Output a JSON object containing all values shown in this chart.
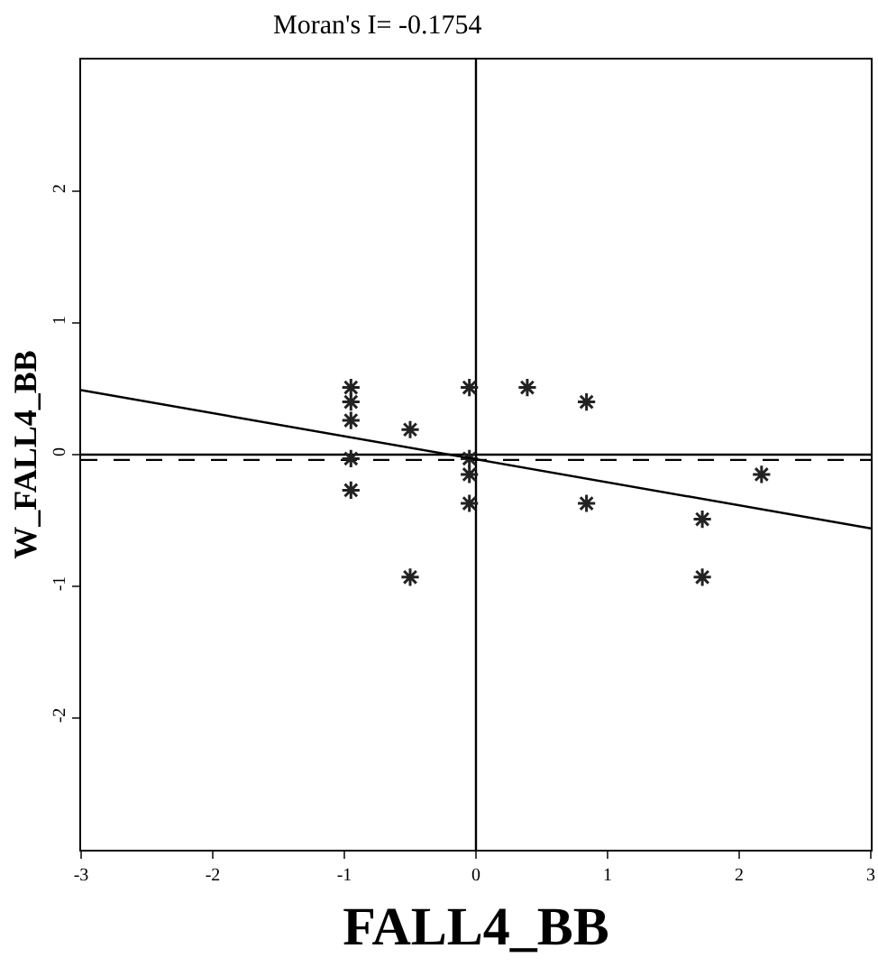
{
  "chart_data": {
    "type": "scatter",
    "title": "Moran's I= -0.1754",
    "xlabel": "FALL4_BB",
    "ylabel": "W_FALL4_BB",
    "grid": false,
    "xlim": [
      -3,
      3
    ],
    "ylim": [
      -3,
      3
    ],
    "xticks": [
      -3,
      -2,
      -1,
      0,
      1,
      2,
      3
    ],
    "yticks": [
      -2,
      -1,
      0,
      1,
      2
    ],
    "series": [
      {
        "marker": "cross",
        "color": "#222222",
        "x": [
          -0.95,
          -0.95,
          -0.95,
          -0.95,
          -0.95,
          -0.5,
          -0.5,
          -0.05,
          -0.05,
          -0.05,
          -0.05,
          0.39,
          0.84,
          0.84,
          1.72,
          1.72,
          2.17
        ],
        "values": [
          0.51,
          0.4,
          0.26,
          -0.03,
          -0.27,
          0.19,
          -0.93,
          0.51,
          -0.03,
          -0.15,
          -0.37,
          0.51,
          0.4,
          -0.37,
          -0.49,
          -0.93,
          -0.15
        ]
      },
      {
        "type": "line",
        "marker": "none",
        "color": "#000000",
        "line_style": "solid",
        "x": [
          -3,
          3
        ],
        "values": [
          0.49,
          -0.56
        ]
      }
    ],
    "ref_lines": [
      {
        "axis": "x",
        "value": 0,
        "color": "#000000",
        "line_style": "solid"
      },
      {
        "axis": "y",
        "value": 0,
        "color": "#000000",
        "line_style": "solid"
      },
      {
        "axis": "y",
        "value": -0.04,
        "color": "#000000",
        "line_style": "dashed"
      }
    ]
  }
}
